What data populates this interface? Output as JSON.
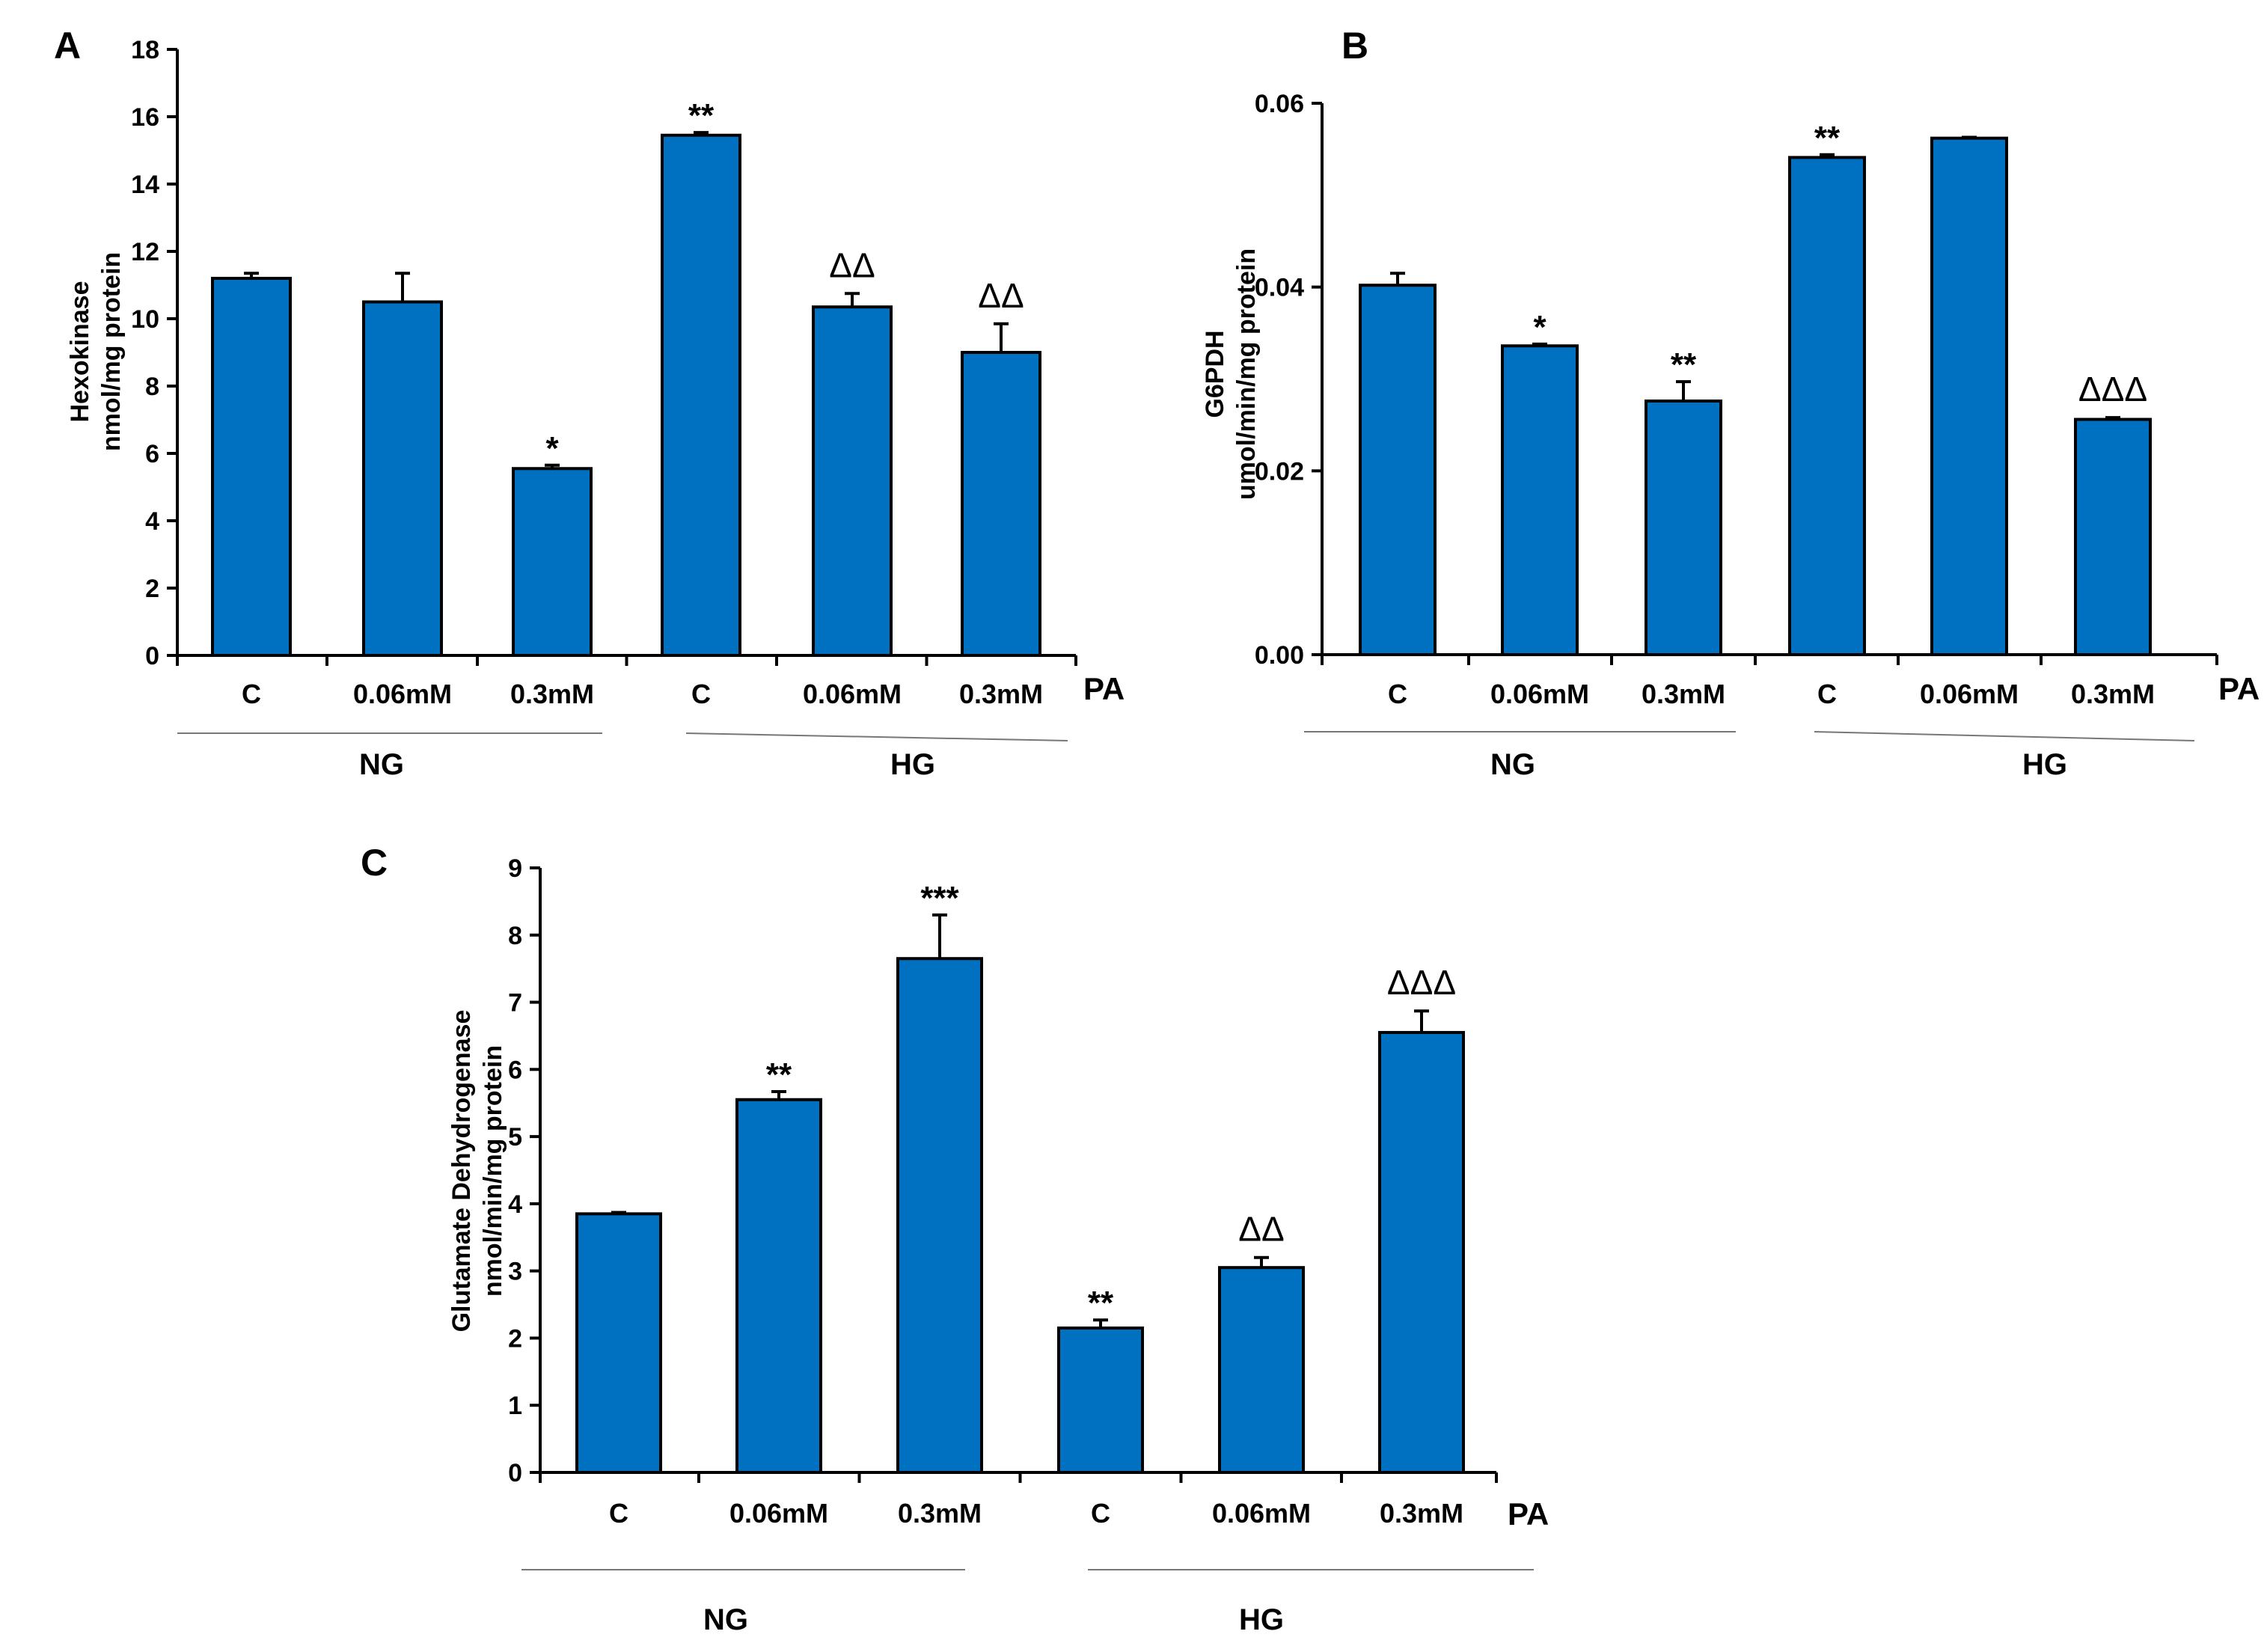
{
  "figure": {
    "axis_suffix_label": "PA",
    "colors": {
      "bar": "#0070C0",
      "edge": "#000000"
    }
  },
  "chart_data": [
    {
      "panel": "A",
      "type": "bar",
      "ylabel_line1": "Hexokinase",
      "ylabel_line2": "nmol/mg protein",
      "ylim": [
        0,
        18
      ],
      "yticks": [
        "0",
        "2",
        "4",
        "6",
        "8",
        "10",
        "12",
        "14",
        "16",
        "18"
      ],
      "categories": [
        "C",
        "0.06mM",
        "0.3mM",
        "C",
        "0.06mM",
        "0.3mM"
      ],
      "values": [
        11.2,
        10.5,
        5.55,
        15.45,
        10.35,
        9.0
      ],
      "errors": [
        0.15,
        0.85,
        0.1,
        0.08,
        0.4,
        0.85
      ],
      "annotations": [
        "",
        "",
        "*",
        "**",
        "ΔΔ",
        "ΔΔ"
      ],
      "groups": [
        {
          "label": "NG",
          "members": [
            0,
            1,
            2
          ]
        },
        {
          "label": "HG",
          "members": [
            3,
            4,
            5
          ]
        }
      ]
    },
    {
      "panel": "B",
      "type": "bar",
      "ylabel_line1": "G6PDH",
      "ylabel_line2": "umol/min/mg protein",
      "ylim": [
        0,
        0.06
      ],
      "yticks": [
        "0.00",
        "0.02",
        "0.04",
        "0.06"
      ],
      "categories": [
        "C",
        "0.06mM",
        "0.3mM",
        "C",
        "0.06mM",
        "0.3mM"
      ],
      "values": [
        0.0402,
        0.0336,
        0.0276,
        0.0541,
        0.0562,
        0.0256
      ],
      "errors": [
        0.0013,
        0.0002,
        0.0021,
        0.0003,
        0.0001,
        0.0002
      ],
      "annotations": [
        "",
        "*",
        "**",
        "**",
        "",
        "ΔΔΔ"
      ],
      "groups": [
        {
          "label": "NG",
          "members": [
            0,
            1,
            2
          ]
        },
        {
          "label": "HG",
          "members": [
            3,
            4,
            5
          ]
        }
      ]
    },
    {
      "panel": "C",
      "type": "bar",
      "ylabel_line1": "Glutamate Dehydrogenase",
      "ylabel_line2": "nmol/min/mg protein",
      "ylim": [
        0,
        9
      ],
      "yticks": [
        "0",
        "1",
        "2",
        "3",
        "4",
        "5",
        "6",
        "7",
        "8",
        "9"
      ],
      "categories": [
        "C",
        "0.06mM",
        "0.3mM",
        "C",
        "0.06mM",
        "0.3mM"
      ],
      "values": [
        3.85,
        5.55,
        7.65,
        2.15,
        3.05,
        6.55
      ],
      "errors": [
        0.02,
        0.12,
        0.65,
        0.12,
        0.15,
        0.32
      ],
      "annotations": [
        "",
        "**",
        "***",
        "**",
        "ΔΔ",
        "ΔΔΔ"
      ],
      "groups": [
        {
          "label": "NG",
          "members": [
            0,
            1,
            2
          ]
        },
        {
          "label": "HG",
          "members": [
            3,
            4,
            5
          ]
        }
      ]
    }
  ]
}
